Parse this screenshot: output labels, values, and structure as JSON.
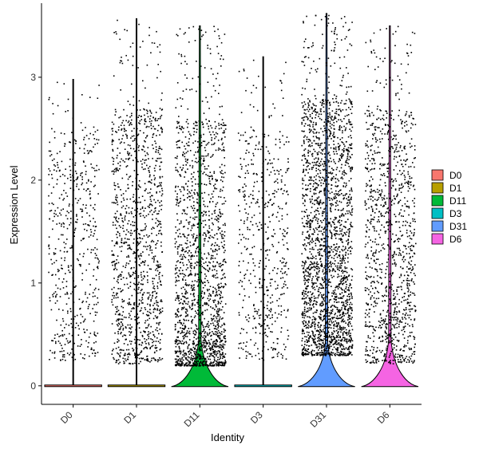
{
  "chart_data": {
    "type": "violin",
    "title": "",
    "xlabel": "Identity",
    "ylabel": "Expression Level",
    "ylim": [
      -0.18,
      3.72
    ],
    "yticks": [
      0,
      1,
      2,
      3
    ],
    "grid": false,
    "legend_position": "right",
    "categories": [
      "D0",
      "D1",
      "D11",
      "D3",
      "D31",
      "D6"
    ],
    "series": [
      {
        "name": "D0",
        "color": "#F8766D",
        "max": 2.98,
        "density": "low",
        "violin_peak_width": 0.0
      },
      {
        "name": "D1",
        "color": "#B79F00",
        "max": 3.57,
        "density": "medium",
        "violin_peak_width": 0.0
      },
      {
        "name": "D11",
        "color": "#00BA38",
        "max": 3.5,
        "density": "high",
        "violin_peak_width": 0.45
      },
      {
        "name": "D3",
        "color": "#00BFC4",
        "max": 3.2,
        "density": "low",
        "violin_peak_width": 0.0
      },
      {
        "name": "D31",
        "color": "#619CFF",
        "max": 3.62,
        "density": "veryhigh",
        "violin_peak_width": 0.42
      },
      {
        "name": "D6",
        "color": "#F564E3",
        "max": 3.5,
        "density": "medium",
        "violin_peak_width": 0.45
      }
    ]
  }
}
